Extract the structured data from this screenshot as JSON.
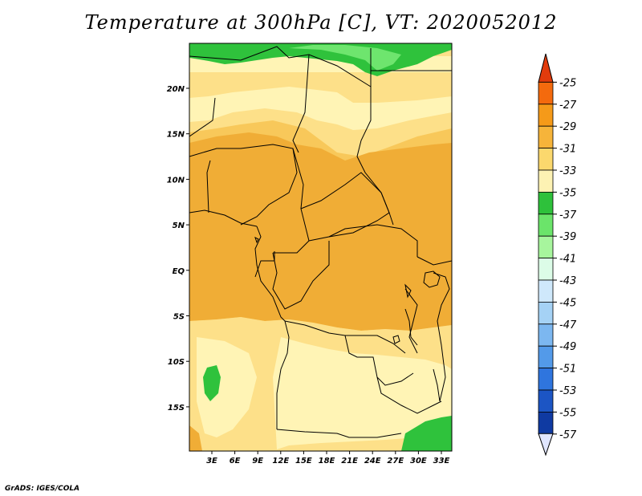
{
  "title": "Temperature at 300hPa [C], VT: 2020052012",
  "footer": "GrADS: IGES/COLA",
  "map": {
    "lon_ticks": [
      "3E",
      "6E",
      "9E",
      "12E",
      "15E",
      "18E",
      "21E",
      "24E",
      "27E",
      "30E",
      "33E"
    ],
    "lat_ticks": [
      "20N",
      "15N",
      "10N",
      "5N",
      "EQ",
      "5S",
      "10S",
      "15S"
    ],
    "colors": {
      "c27_29": "#f0ad36",
      "c29_31": "#f8c85a",
      "c31_33": "#fde089",
      "c33_35": "#fff4b5",
      "c35_37": "#2fc23c",
      "c37_39": "#6ee56e"
    }
  },
  "colorbar": {
    "labels": [
      "-25",
      "-27",
      "-29",
      "-31",
      "-33",
      "-35",
      "-37",
      "-39",
      "-41",
      "-43",
      "-45",
      "-47",
      "-49",
      "-51",
      "-53",
      "-55",
      "-57"
    ],
    "colors": [
      "#e13b0c",
      "#f46a0d",
      "#f59a19",
      "#f6b43a",
      "#fbd86d",
      "#fdf2b3",
      "#2ec13b",
      "#6be46a",
      "#a7f59d",
      "#dcfce7",
      "#cfe8fb",
      "#a5d2f5",
      "#7cb7f0",
      "#539ae9",
      "#2f75de",
      "#1c55c4",
      "#0f3aa2",
      "#0a1f6e"
    ],
    "under_color": "#e0e6ff"
  }
}
